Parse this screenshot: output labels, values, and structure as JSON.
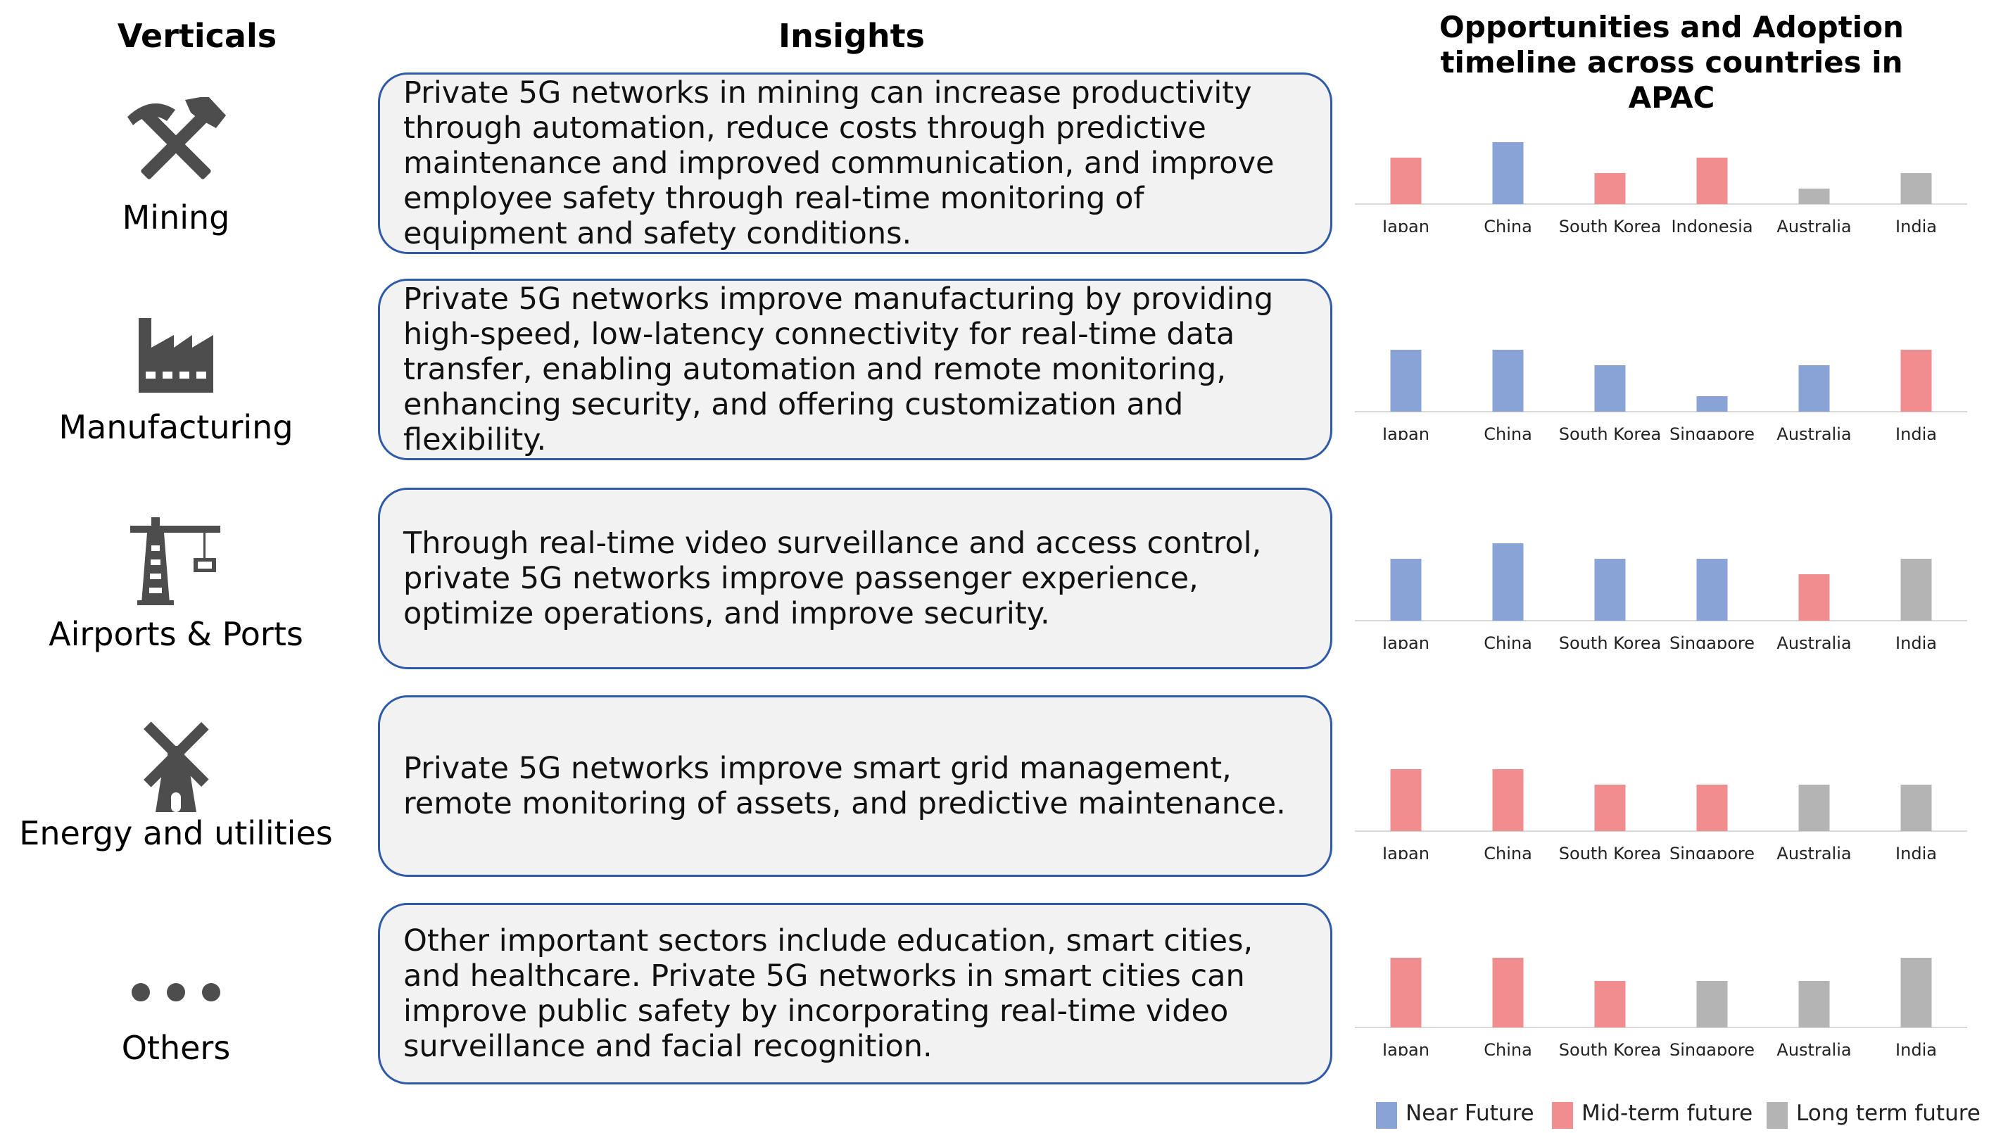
{
  "headers": {
    "verticals": "Verticals",
    "insights": "Insights",
    "chart_title_line1": "Opportunities and Adoption",
    "chart_title_line2": "timeline across countries in APAC"
  },
  "colors": {
    "near": "#8aa3d6",
    "mid": "#f08d8f",
    "long": "#b4b4b4",
    "box_border": "#2f5aa8",
    "box_fill": "#f2f2f2",
    "icon": "#4d4d4d"
  },
  "legend": [
    {
      "key": "near",
      "label": "Near Future"
    },
    {
      "key": "mid",
      "label": "Mid-term future"
    },
    {
      "key": "long",
      "label": "Long term future"
    }
  ],
  "verticals": [
    {
      "label": "Mining",
      "icon": "pickaxe-hammer-icon"
    },
    {
      "label": "Manufacturing",
      "icon": "factory-icon"
    },
    {
      "label": "Airports & Ports",
      "icon": "crane-icon"
    },
    {
      "label": "Energy and utilities",
      "icon": "windmill-icon"
    },
    {
      "label": "Others",
      "icon": "ellipsis-icon"
    }
  ],
  "insights": [
    "Private 5G networks in mining can increase productivity through automation, reduce costs through predictive maintenance and improved communication, and improve employee safety through real-time monitoring of equipment and safety conditions.",
    "Private 5G networks improve manufacturing by providing high-speed, low-latency connectivity for real-time data transfer, enabling automation and remote monitoring, enhancing security, and offering customization and flexibility.",
    "Through real-time video surveillance and access control, private 5G networks improve passenger experience, optimize operations, and improve security.",
    "Private 5G networks improve smart grid management, remote monitoring of assets, and predictive maintenance.",
    "Other important sectors include education, smart cities, and healthcare. Private 5G networks in smart cities can improve public safety by incorporating real-time video surveillance and facial recognition."
  ],
  "chart_data": [
    {
      "type": "bar",
      "categories": [
        "Japan",
        "China",
        "South Korea",
        "Indonesia",
        "Australia",
        "India"
      ],
      "values": [
        3,
        4,
        2,
        3,
        1,
        2
      ],
      "timeline": [
        "mid",
        "near",
        "mid",
        "mid",
        "long",
        "long"
      ],
      "ylim": [
        0,
        5
      ],
      "grid": false
    },
    {
      "type": "bar",
      "categories": [
        "Japan",
        "China",
        "South Korea",
        "Singapore",
        "Australia",
        "India"
      ],
      "values": [
        4,
        4,
        3,
        1,
        3,
        4
      ],
      "timeline": [
        "near",
        "near",
        "near",
        "near",
        "near",
        "mid"
      ],
      "ylim": [
        0,
        5
      ],
      "grid": false
    },
    {
      "type": "bar",
      "categories": [
        "Japan",
        "China",
        "South Korea",
        "Singapore",
        "Australia",
        "India"
      ],
      "values": [
        4,
        5,
        4,
        4,
        3,
        4
      ],
      "timeline": [
        "near",
        "near",
        "near",
        "near",
        "mid",
        "long"
      ],
      "ylim": [
        0,
        5
      ],
      "grid": false
    },
    {
      "type": "bar",
      "categories": [
        "Japan",
        "China",
        "South Korea",
        "Singapore",
        "Australia",
        "India"
      ],
      "values": [
        4,
        4,
        3,
        3,
        3,
        3
      ],
      "timeline": [
        "mid",
        "mid",
        "mid",
        "mid",
        "long",
        "long"
      ],
      "ylim": [
        0,
        5
      ],
      "grid": false
    },
    {
      "type": "bar",
      "categories": [
        "Japan",
        "China",
        "South Korea",
        "Singapore",
        "Australia",
        "India"
      ],
      "values": [
        3,
        3,
        2,
        2,
        2,
        3
      ],
      "timeline": [
        "mid",
        "mid",
        "mid",
        "long",
        "long",
        "long"
      ],
      "ylim": [
        0,
        4
      ],
      "grid": false
    }
  ]
}
